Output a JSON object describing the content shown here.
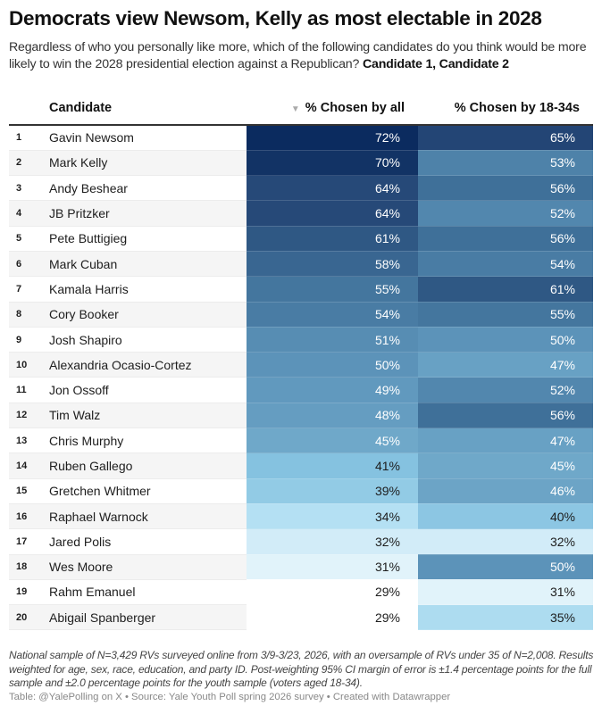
{
  "title": "Democrats view Newsom, Kelly as most electable in 2028",
  "subtitle": "Regardless of who you personally like more, which of the following candidates do you think would be more likely to win the 2028 presidential election against a Republican?",
  "subtitle_bold": "Candidate 1, Candidate 2",
  "columns": {
    "candidate": "Candidate",
    "all": "% Chosen by all",
    "youth": "% Chosen by 18-34s",
    "sort_icon": "triangle-down-icon"
  },
  "rows": [
    {
      "rank": "1",
      "name": "Gavin Newsom",
      "all": 72,
      "youth": 65
    },
    {
      "rank": "2",
      "name": "Mark Kelly",
      "all": 70,
      "youth": 53
    },
    {
      "rank": "3",
      "name": "Andy Beshear",
      "all": 64,
      "youth": 56
    },
    {
      "rank": "4",
      "name": "JB Pritzker",
      "all": 64,
      "youth": 52
    },
    {
      "rank": "5",
      "name": "Pete Buttigieg",
      "all": 61,
      "youth": 56
    },
    {
      "rank": "6",
      "name": "Mark Cuban",
      "all": 58,
      "youth": 54
    },
    {
      "rank": "7",
      "name": "Kamala Harris",
      "all": 55,
      "youth": 61
    },
    {
      "rank": "8",
      "name": "Cory Booker",
      "all": 54,
      "youth": 55
    },
    {
      "rank": "9",
      "name": "Josh Shapiro",
      "all": 51,
      "youth": 50
    },
    {
      "rank": "10",
      "name": "Alexandria Ocasio-Cortez",
      "all": 50,
      "youth": 47
    },
    {
      "rank": "11",
      "name": "Jon Ossoff",
      "all": 49,
      "youth": 52
    },
    {
      "rank": "12",
      "name": "Tim Walz",
      "all": 48,
      "youth": 56
    },
    {
      "rank": "13",
      "name": "Chris Murphy",
      "all": 45,
      "youth": 47
    },
    {
      "rank": "14",
      "name": "Ruben Gallego",
      "all": 41,
      "youth": 45
    },
    {
      "rank": "15",
      "name": "Gretchen Whitmer",
      "all": 39,
      "youth": 46
    },
    {
      "rank": "16",
      "name": "Raphael Warnock",
      "all": 34,
      "youth": 40
    },
    {
      "rank": "17",
      "name": "Jared Polis",
      "all": 32,
      "youth": 32
    },
    {
      "rank": "18",
      "name": "Wes Moore",
      "all": 31,
      "youth": 50
    },
    {
      "rank": "19",
      "name": "Rahm Emanuel",
      "all": 29,
      "youth": 31
    },
    {
      "rank": "20",
      "name": "Abigail Spanberger",
      "all": 29,
      "youth": 35
    }
  ],
  "colors": {
    "max": "#0b2b5f",
    "min": "#ffffff"
  },
  "notes": "National sample of N=3,429 RVs surveyed online from 3/9-3/23, 2026, with an oversample of RVs under 35 of N=2,008. Results weighted for age, sex, race, education, and party ID. Post-weighting 95% CI margin of error is ±1.4 percentage points for the full sample and ±2.0 percentage points for the youth sample (voters aged 18-34).",
  "source": "Table: @YalePolling on X • Source: Yale Youth Poll spring 2026 survey • Created with Datawrapper"
}
